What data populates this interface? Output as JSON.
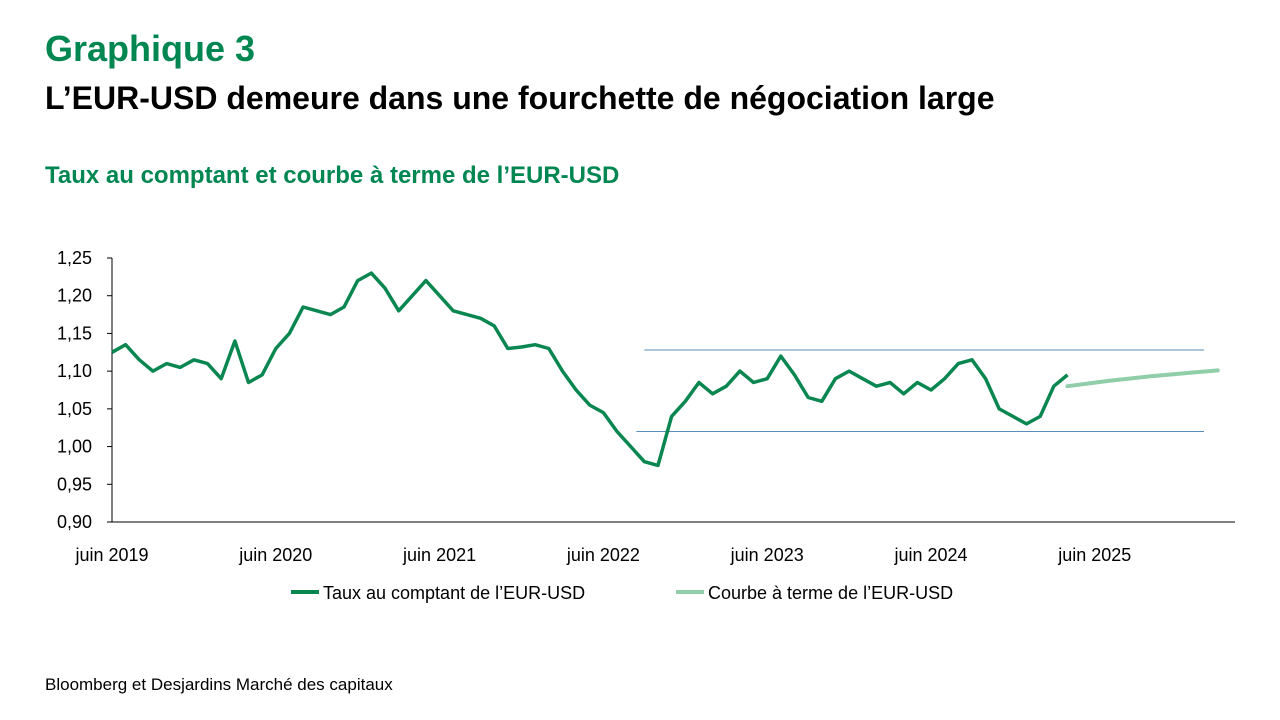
{
  "header": {
    "kicker": "Graphique 3",
    "title": "L’EUR-USD demeure dans une fourchette de négociation large",
    "subtitle": "Taux au comptant et courbe à terme de l’EUR-USD"
  },
  "footer": {
    "source": "Bloomberg et Desjardins Marché des capitaux"
  },
  "chart_data": {
    "type": "line",
    "title": "",
    "xlabel": "",
    "ylabel": "",
    "ylim": [
      0.9,
      1.25
    ],
    "y_ticks": [
      "0,90",
      "0,95",
      "1,00",
      "1,05",
      "1,10",
      "1,15",
      "1,20",
      "1,25"
    ],
    "x_ticks": [
      "juin 2019",
      "juin 2020",
      "juin 2021",
      "juin 2022",
      "juin 2023",
      "juin 2024",
      "juin 2025"
    ],
    "xlim": [
      "2019-06",
      "2026-03"
    ],
    "grid": false,
    "legend_position": "bottom",
    "colors": {
      "spot": "#0a8750",
      "forward": "#8fcea8",
      "band": "#5b8db8"
    },
    "trading_band": {
      "upper": 1.128,
      "lower": 1.02,
      "x_start": "2022-09",
      "x_end": "2026-02"
    },
    "series": [
      {
        "name": "Taux au comptant de l’EUR-USD",
        "x": [
          "2019-06",
          "2019-07",
          "2019-08",
          "2019-09",
          "2019-10",
          "2019-11",
          "2019-12",
          "2020-01",
          "2020-02",
          "2020-03",
          "2020-04",
          "2020-05",
          "2020-06",
          "2020-07",
          "2020-08",
          "2020-09",
          "2020-10",
          "2020-11",
          "2020-12",
          "2021-01",
          "2021-02",
          "2021-03",
          "2021-04",
          "2021-05",
          "2021-06",
          "2021-07",
          "2021-08",
          "2021-09",
          "2021-10",
          "2021-11",
          "2021-12",
          "2022-01",
          "2022-02",
          "2022-03",
          "2022-04",
          "2022-05",
          "2022-06",
          "2022-07",
          "2022-08",
          "2022-09",
          "2022-10",
          "2022-11",
          "2022-12",
          "2023-01",
          "2023-02",
          "2023-03",
          "2023-04",
          "2023-05",
          "2023-06",
          "2023-07",
          "2023-08",
          "2023-09",
          "2023-10",
          "2023-11",
          "2023-12",
          "2024-01",
          "2024-02",
          "2024-03",
          "2024-04",
          "2024-05",
          "2024-06",
          "2024-07",
          "2024-08",
          "2024-09",
          "2024-10",
          "2024-11",
          "2024-12",
          "2025-01",
          "2025-02",
          "2025-03",
          "2025-04"
        ],
        "values": [
          1.125,
          1.135,
          1.115,
          1.1,
          1.11,
          1.105,
          1.115,
          1.11,
          1.09,
          1.14,
          1.085,
          1.095,
          1.13,
          1.15,
          1.185,
          1.18,
          1.175,
          1.185,
          1.22,
          1.23,
          1.21,
          1.18,
          1.2,
          1.22,
          1.2,
          1.18,
          1.175,
          1.17,
          1.16,
          1.13,
          1.132,
          1.135,
          1.13,
          1.1,
          1.075,
          1.055,
          1.045,
          1.02,
          1.0,
          0.98,
          0.975,
          1.04,
          1.06,
          1.085,
          1.07,
          1.08,
          1.1,
          1.085,
          1.09,
          1.12,
          1.095,
          1.065,
          1.06,
          1.09,
          1.1,
          1.09,
          1.08,
          1.085,
          1.07,
          1.085,
          1.075,
          1.09,
          1.11,
          1.115,
          1.09,
          1.05,
          1.04,
          1.03,
          1.04,
          1.08,
          1.095
        ]
      },
      {
        "name": "Courbe à terme de l’EUR-USD",
        "x": [
          "2025-04",
          "2025-07",
          "2025-10",
          "2026-01",
          "2026-03"
        ],
        "values": [
          1.08,
          1.087,
          1.093,
          1.098,
          1.101
        ]
      }
    ]
  }
}
